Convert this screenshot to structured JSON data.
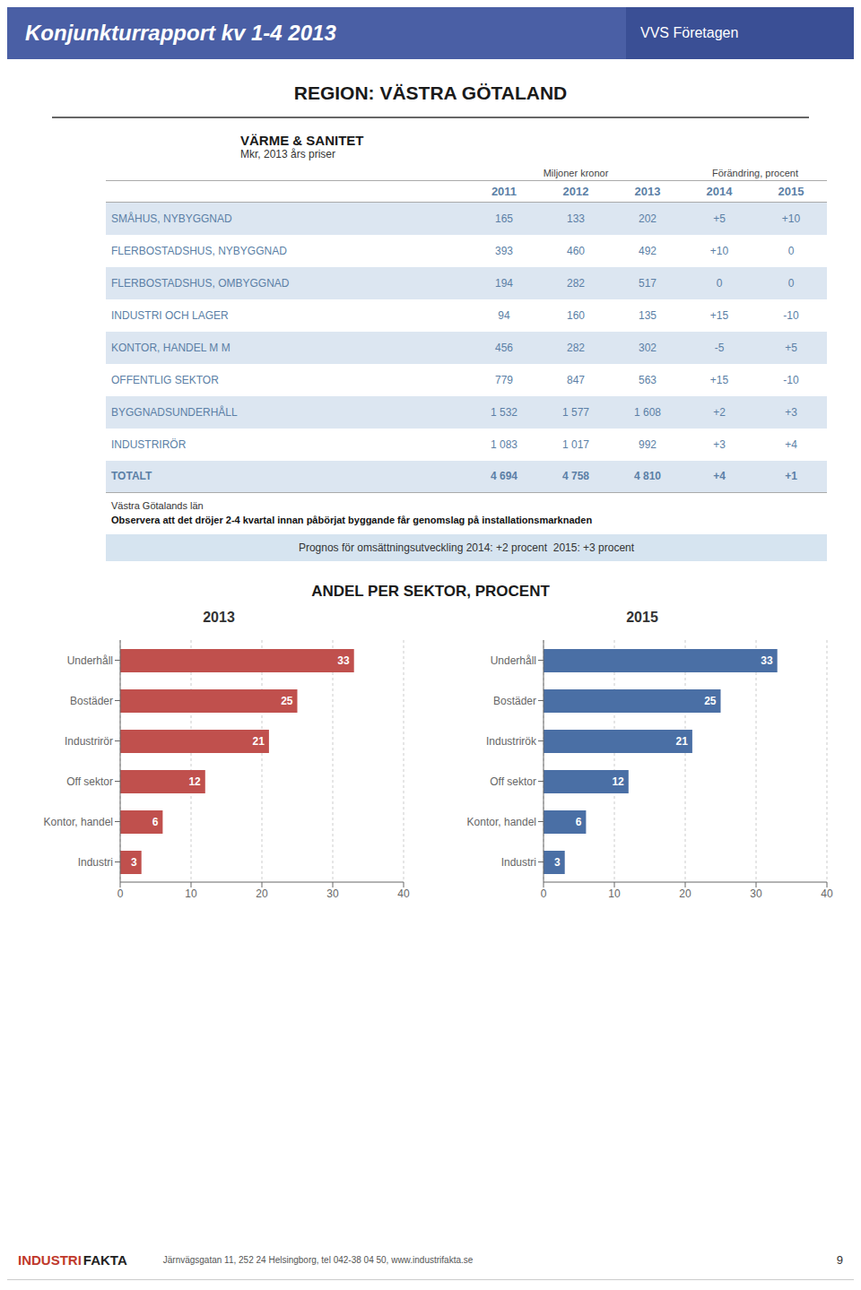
{
  "title": "REGION: VÄSTRA GÖTALAND",
  "annotations": {
    "header": "Konjunkturrapport kv 1-4 2013",
    "header_right": "VVS Företagen",
    "footnote1": "Västra Götalands län",
    "footnote2": "Observera att det dröjer 2-4 kvartal innan påbörjat byggande får genomslag på installationsmarknaden",
    "prognos": "Prognos för omsättningsutveckling 2014: +2 procent  2015: +3 procent",
    "chart_section_title": "ANDEL PER SEKTOR, PROCENT",
    "footer_logo": [
      "INDUSTRI",
      "FAKTA"
    ],
    "footer_address": "Järnvägsgatan 11, 252 24 Helsingborg, tel 042-38 04 50, www.industrifakta.se",
    "footer_page": "9"
  },
  "chart_data": [
    {
      "type": "table",
      "title": "VÄRME & SANITET",
      "subtitle": "Mkr, 2013 års priser",
      "column_groups": [
        {
          "label": "Miljoner kronor",
          "span": 3
        },
        {
          "label": "Förändring, procent",
          "span": 2
        }
      ],
      "columns": [
        "2011",
        "2012",
        "2013",
        "2014",
        "2015"
      ],
      "rows": [
        {
          "label": "SMÅHUS, NYBYGGNAD",
          "values": [
            "165",
            "133",
            "202",
            "+5",
            "+10"
          ]
        },
        {
          "label": "FLERBOSTADSHUS, NYBYGGNAD",
          "values": [
            "393",
            "460",
            "492",
            "+10",
            "0"
          ]
        },
        {
          "label": "FLERBOSTADSHUS, OMBYGGNAD",
          "values": [
            "194",
            "282",
            "517",
            "0",
            "0"
          ]
        },
        {
          "label": "INDUSTRI OCH LAGER",
          "values": [
            "94",
            "160",
            "135",
            "+15",
            "-10"
          ]
        },
        {
          "label": "KONTOR, HANDEL M M",
          "values": [
            "456",
            "282",
            "302",
            "-5",
            "+5"
          ]
        },
        {
          "label": "OFFENTLIG SEKTOR",
          "values": [
            "779",
            "847",
            "563",
            "+15",
            "-10"
          ]
        },
        {
          "label": "BYGGNADSUNDERHÅLL",
          "values": [
            "1 532",
            "1 577",
            "1 608",
            "+2",
            "+3"
          ]
        },
        {
          "label": "INDUSTRIRÖR",
          "values": [
            "1 083",
            "1 017",
            "992",
            "+3",
            "+4"
          ]
        },
        {
          "label": "TOTALT",
          "values": [
            "4 694",
            "4 758",
            "4 810",
            "+4",
            "+1"
          ]
        }
      ]
    },
    {
      "type": "bar",
      "title": "2013",
      "orientation": "horizontal",
      "categories": [
        "Underhåll",
        "Bostäder",
        "Industrirör",
        "Off sektor",
        "Kontor, handel",
        "Industri"
      ],
      "values": [
        33,
        25,
        21,
        12,
        6,
        3
      ],
      "color": "#c0504d",
      "xlim": [
        0,
        40
      ],
      "xticks": [
        0,
        10,
        20,
        30,
        40
      ],
      "grid": true,
      "data_labels": true
    },
    {
      "type": "bar",
      "title": "2015",
      "orientation": "horizontal",
      "categories": [
        "Underhåll",
        "Bostäder",
        "Industrirök",
        "Off sektor",
        "Kontor, handel",
        "Industri"
      ],
      "values": [
        33,
        25,
        21,
        12,
        6,
        3
      ],
      "color": "#4a6fa5",
      "xlim": [
        0,
        40
      ],
      "xticks": [
        0,
        10,
        20,
        30,
        40
      ],
      "grid": true,
      "data_labels": true
    }
  ]
}
